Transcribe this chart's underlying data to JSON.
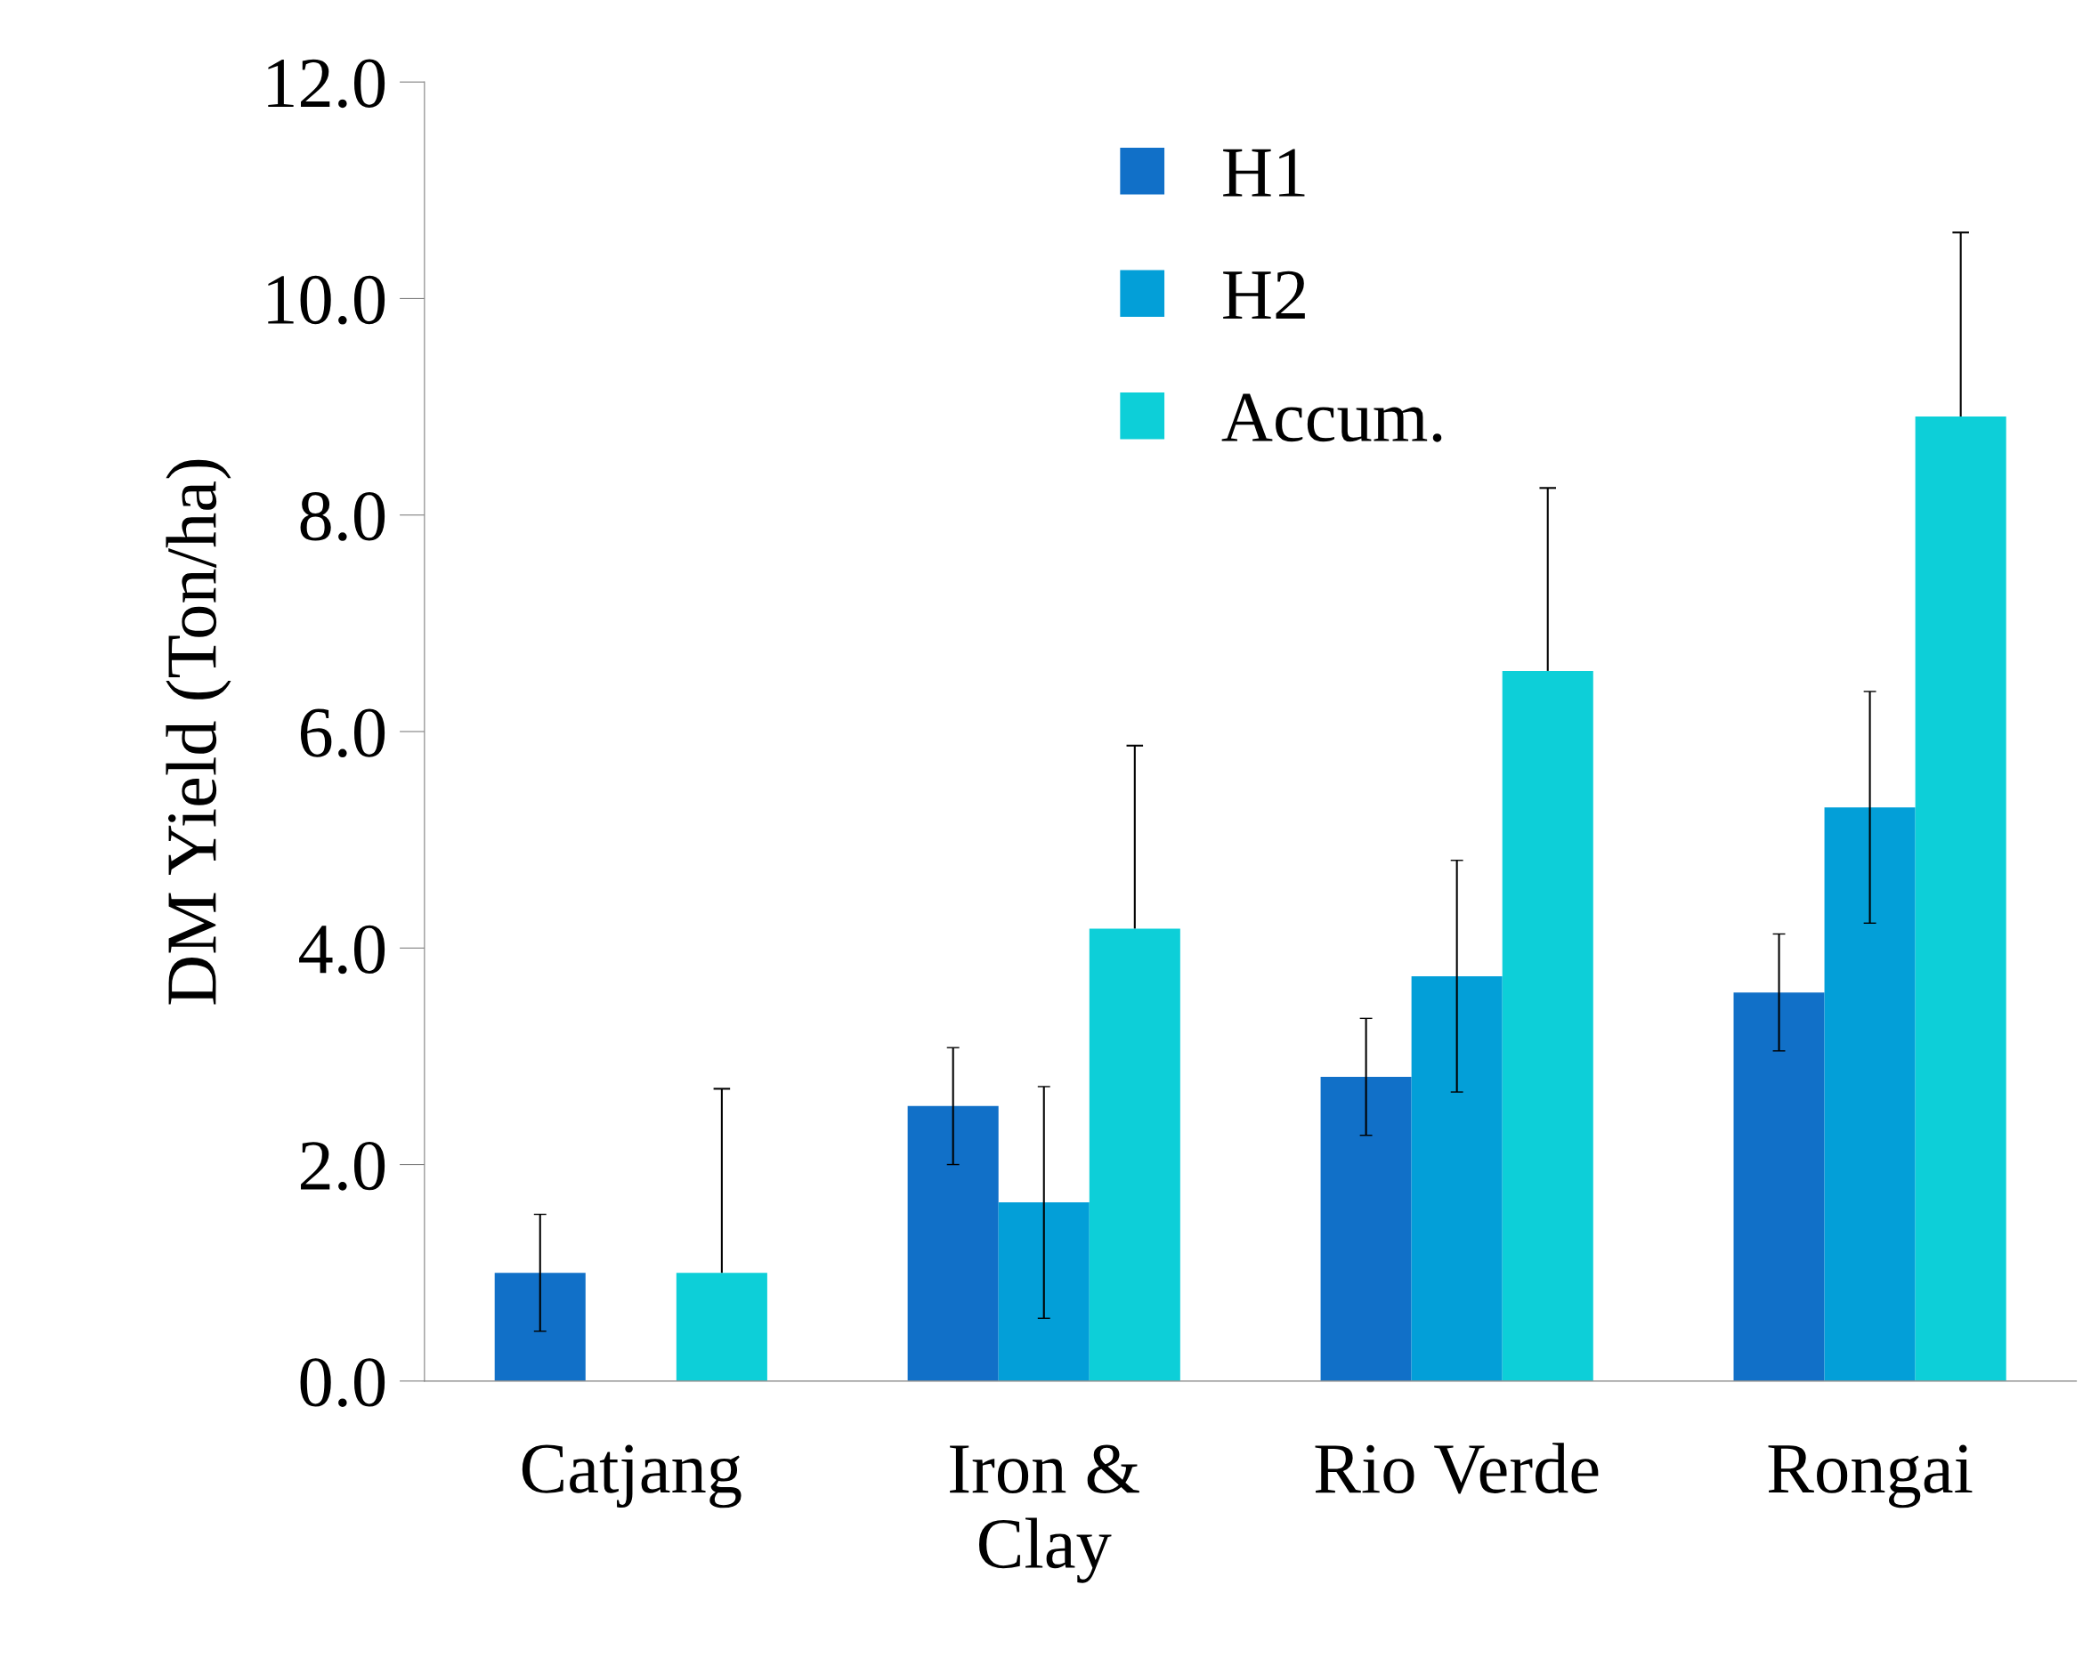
{
  "chart_data": {
    "type": "bar",
    "ylabel": "DM Yield (Ton/ha)",
    "categories": [
      "Catjang",
      "Iron &\nClay",
      "Rio Verde",
      "Rongai"
    ],
    "series": [
      {
        "name": "H1",
        "color": "#1170c8",
        "values": [
          1.0,
          2.54,
          2.81,
          3.59
        ],
        "errors": [
          0.54,
          0.54,
          0.54,
          0.54
        ]
      },
      {
        "name": "H2",
        "color": "#039fd8",
        "values": [
          null,
          1.65,
          3.74,
          5.3
        ],
        "errors": [
          null,
          1.07,
          1.07,
          1.07
        ]
      },
      {
        "name": "Accum.",
        "color": "#0dcfd8",
        "values": [
          1.0,
          4.18,
          6.56,
          8.91
        ],
        "errors": [
          [
            1.0,
            2.7
          ],
          [
            4.18,
            5.87
          ],
          [
            6.56,
            8.25
          ],
          [
            8.91,
            10.61
          ]
        ]
      }
    ],
    "ylim": [
      0,
      12
    ],
    "yticks": [
      {
        "value": 0,
        "label": "0.0"
      },
      {
        "value": 2,
        "label": "2.0"
      },
      {
        "value": 4,
        "label": "4.0"
      },
      {
        "value": 6,
        "label": "6.0"
      },
      {
        "value": 8,
        "label": "8.0"
      },
      {
        "value": 10,
        "label": "10.0"
      },
      {
        "value": 12,
        "label": "12.0"
      }
    ],
    "grid": false,
    "legend": "top"
  }
}
